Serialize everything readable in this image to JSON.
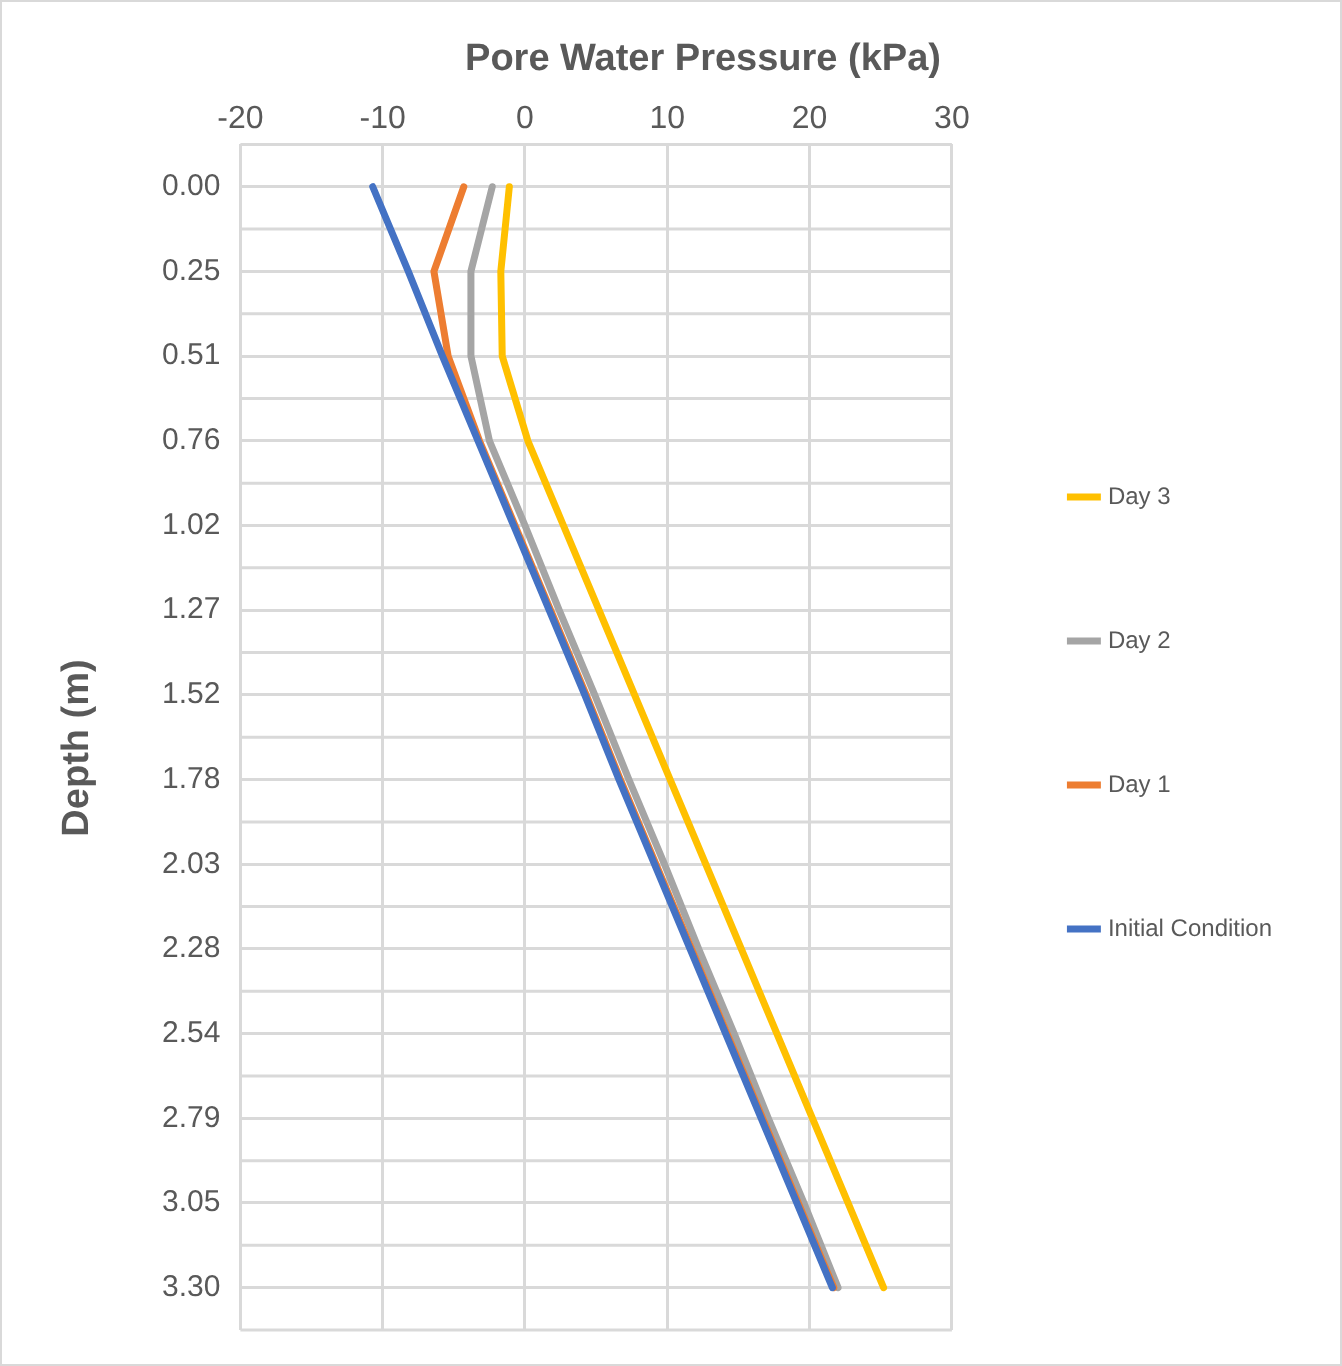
{
  "chart_data": {
    "type": "line",
    "orientation": "horizontal",
    "title": "Pore Water Pressure (kPa)",
    "ylabel": "Depth (m)",
    "categories": [
      "0.00",
      "0.25",
      "0.51",
      "0.76",
      "1.02",
      "1.27",
      "1.52",
      "1.78",
      "2.03",
      "2.28",
      "2.54",
      "2.79",
      "3.05",
      "3.30"
    ],
    "xlim": [
      -20,
      30
    ],
    "xticks": [
      -20,
      -10,
      0,
      10,
      20,
      30
    ],
    "grid": true,
    "legend": "right",
    "marker": "none",
    "line_style": "solid",
    "series": [
      {
        "name": "Initial Condition",
        "color": "#4472c4",
        "values": [
          -10.7,
          -8.2,
          -5.8,
          -3.3,
          -0.8,
          1.7,
          4.2,
          6.6,
          9.1,
          11.6,
          14.1,
          16.6,
          19.1,
          21.6
        ]
      },
      {
        "name": "Day 1",
        "color": "#ed7d31",
        "values": [
          -4.3,
          -6.4,
          -5.4,
          -3.2,
          -0.7,
          1.8,
          4.3,
          6.7,
          9.2,
          11.7,
          14.2,
          16.7,
          19.2,
          21.7
        ]
      },
      {
        "name": "Day 2",
        "color": "#a5a5a5",
        "values": [
          -2.3,
          -3.8,
          -3.8,
          -2.5,
          0,
          2.4,
          4.9,
          7.3,
          9.8,
          12.2,
          14.7,
          17.1,
          19.6,
          22.0
        ]
      },
      {
        "name": "Day 3",
        "color": "#ffc000",
        "values": [
          -1.1,
          -1.7,
          -1.6,
          0.2,
          2.7,
          5.2,
          7.7,
          10.2,
          12.7,
          15.2,
          17.7,
          20.2,
          22.7,
          25.2
        ]
      }
    ]
  }
}
